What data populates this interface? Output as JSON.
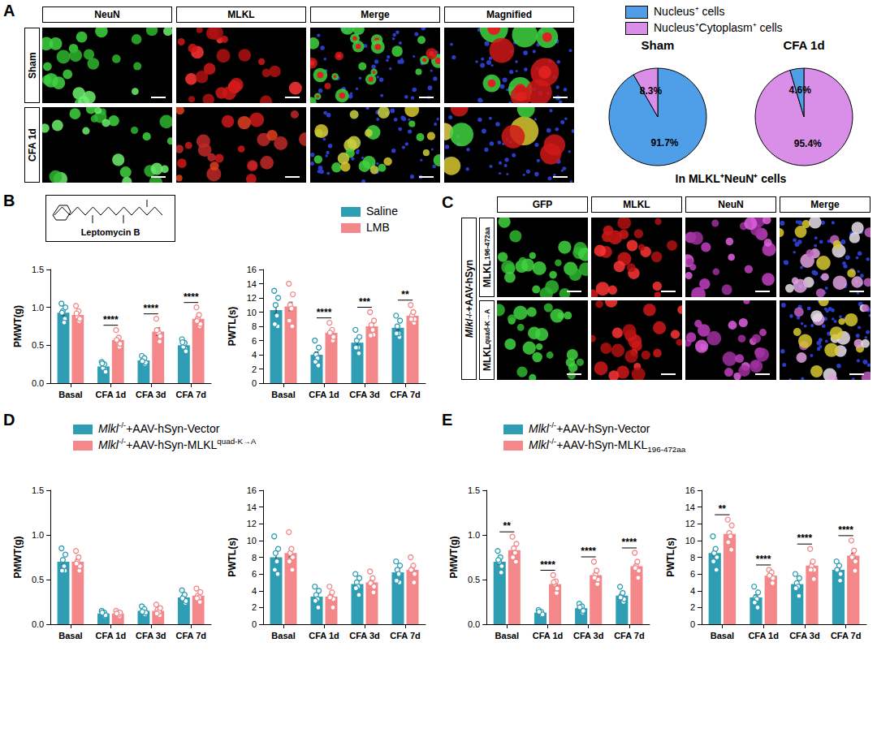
{
  "panel_letters": [
    "A",
    "B",
    "C",
    "D",
    "E"
  ],
  "images": {
    "A": {
      "columns": [
        "NeuN",
        "MLKL",
        "Merge",
        "Magnified"
      ],
      "rows": [
        "Sham",
        "CFA 1d"
      ]
    },
    "C": {
      "columns": [
        "GFP",
        "MLKL",
        "NeuN",
        "Merge"
      ],
      "rows": [
        [
          "MLKL",
          {
            "text": "196-472aa",
            "style": "sub"
          }
        ],
        [
          "MLKL",
          {
            "text": "quad-K→A",
            "style": "sup"
          }
        ]
      ],
      "group_label": [
        {
          "text": "Mlkl",
          "style": "italic"
        },
        {
          "text": "-/-",
          "style": "sup"
        },
        "+AAV-hSyn"
      ]
    }
  },
  "structure_label": "Leptomycin B",
  "pie_note": "In MLKL⁺NeuN⁺ cells",
  "chart_data": [
    {
      "type": "pie",
      "title": "Sham",
      "legend": "top",
      "categories": [
        "Nucleus⁺ cells",
        "Nucleus⁺Cytoplasm⁺ cells"
      ],
      "values": [
        91.7,
        8.3
      ],
      "value_labels": [
        "91.7%",
        "8.3%"
      ],
      "colors": [
        "#4f9fe8",
        "#d98fe8"
      ]
    },
    {
      "type": "pie",
      "title": "CFA 1d",
      "categories": [
        "Nucleus⁺Cytoplasm⁺ cells",
        "Nucleus⁺ cells"
      ],
      "values": [
        95.4,
        4.6
      ],
      "value_labels": [
        "95.4%",
        "4.6%"
      ],
      "colors": [
        "#d98fe8",
        "#4f9fe8"
      ]
    },
    {
      "type": "bar",
      "ylabel": "PMWT(g)",
      "legend": "top",
      "grid": false,
      "categories": [
        "Basal",
        "CFA 1d",
        "CFA 3d",
        "CFA 7d"
      ],
      "ylim": [
        0,
        1.5
      ],
      "yticks": [
        {
          "value": 0,
          "label": "0.0"
        },
        0.5,
        {
          "value": 1,
          "label": "1.0"
        },
        1.5
      ],
      "series": [
        {
          "name": [
            "Saline"
          ],
          "color": "#2f9db3",
          "values": [
            0.93,
            0.22,
            0.3,
            0.5
          ],
          "errors": [
            0.04,
            0.02,
            0.02,
            0.03
          ],
          "points": [
            [
              1.05,
              0.85,
              0.95,
              0.8,
              1.0,
              0.93
            ],
            [
              0.28,
              0.18,
              0.2,
              0.25,
              0.15,
              0.26
            ],
            [
              0.36,
              0.25,
              0.3,
              0.33,
              0.27,
              0.29
            ],
            [
              0.58,
              0.45,
              0.48,
              0.53,
              0.42,
              0.54
            ]
          ]
        },
        {
          "name": [
            "LMB"
          ],
          "color": "#f4878a",
          "values": [
            0.9,
            0.57,
            0.68,
            0.85
          ],
          "errors": [
            0.04,
            0.04,
            0.05,
            0.04
          ],
          "points": [
            [
              1.02,
              0.82,
              0.88,
              0.95,
              0.85,
              0.92
            ],
            [
              0.7,
              0.48,
              0.55,
              0.6,
              0.52,
              0.57
            ],
            [
              0.85,
              0.55,
              0.7,
              0.66,
              0.62,
              0.7
            ],
            [
              1.0,
              0.75,
              0.85,
              0.9,
              0.78,
              0.82
            ]
          ]
        }
      ],
      "significance": [
        null,
        "****",
        "****",
        "****"
      ]
    },
    {
      "type": "bar",
      "ylabel": "PWTL(s)",
      "grid": false,
      "categories": [
        "Basal",
        "CFA 1d",
        "CFA 3d",
        "CFA 7d"
      ],
      "ylim": [
        0,
        16
      ],
      "yticks": [
        0,
        2,
        4,
        6,
        8,
        10,
        12,
        14,
        16
      ],
      "series": [
        {
          "name": [
            "Saline"
          ],
          "color": "#2f9db3",
          "values": [
            10.3,
            4.0,
            5.7,
            7.8
          ],
          "errors": [
            0.5,
            0.4,
            0.35,
            0.35
          ],
          "points": [
            [
              13.0,
              8.0,
              11.0,
              9.5,
              12.0,
              8.3
            ],
            [
              6.0,
              2.5,
              4.0,
              3.5,
              5.0,
              3.0
            ],
            [
              7.5,
              4.2,
              6.0,
              5.0,
              6.5,
              5.0
            ],
            [
              9.5,
              6.5,
              8.0,
              7.0,
              8.8,
              7.0
            ]
          ]
        },
        {
          "name": [
            "LMB"
          ],
          "color": "#f4878a",
          "values": [
            10.8,
            7.1,
            8.0,
            9.5
          ],
          "errors": [
            0.6,
            0.3,
            0.35,
            0.3
          ],
          "points": [
            [
              14.0,
              8.0,
              11.0,
              10.5,
              12.5,
              8.8
            ],
            [
              8.5,
              6.0,
              7.0,
              7.5,
              6.5,
              7.1
            ],
            [
              10.0,
              6.8,
              8.2,
              7.5,
              8.8,
              6.7
            ],
            [
              11.0,
              8.5,
              9.5,
              10.0,
              9.0,
              9.0
            ]
          ]
        }
      ],
      "significance": [
        null,
        "****",
        "***",
        "**"
      ]
    },
    {
      "type": "bar",
      "ylabel": "PMWT(g)",
      "legend": "top",
      "grid": false,
      "categories": [
        "Basal",
        "CFA 1d",
        "CFA 3d",
        "CFA 7d"
      ],
      "ylim": [
        0,
        1.5
      ],
      "yticks": [
        {
          "value": 0,
          "label": "0.0"
        },
        0.5,
        {
          "value": 1,
          "label": "1.0"
        },
        1.5
      ],
      "series": [
        {
          "name": [
            {
              "text": "Mlkl",
              "style": "italic"
            },
            {
              "text": "-/-",
              "style": "sup"
            },
            "+AAV-hSyn-Vector"
          ],
          "color": "#2f9db3",
          "values": [
            0.7,
            0.12,
            0.15,
            0.3
          ],
          "errors": [
            0.03,
            0.01,
            0.01,
            0.02
          ],
          "points": [
            [
              0.85,
              0.6,
              0.72,
              0.65,
              0.78,
              0.6
            ],
            [
              0.15,
              0.09,
              0.12,
              0.13,
              0.1,
              0.13
            ],
            [
              0.2,
              0.11,
              0.15,
              0.17,
              0.13,
              0.14
            ],
            [
              0.38,
              0.24,
              0.3,
              0.33,
              0.26,
              0.29
            ]
          ]
        },
        {
          "name": [
            {
              "text": "Mlkl",
              "style": "italic"
            },
            {
              "text": "-/-",
              "style": "sup"
            },
            "+AAV-hSyn-MLKL",
            {
              "text": "quad-K→A",
              "style": "sup"
            }
          ],
          "color": "#f4878a",
          "values": [
            0.7,
            0.12,
            0.15,
            0.32
          ],
          "errors": [
            0.03,
            0.01,
            0.01,
            0.02
          ],
          "points": [
            [
              0.82,
              0.6,
              0.7,
              0.75,
              0.65,
              0.68
            ],
            [
              0.15,
              0.09,
              0.12,
              0.11,
              0.13,
              0.12
            ],
            [
              0.22,
              0.1,
              0.16,
              0.14,
              0.18,
              0.12
            ],
            [
              0.4,
              0.25,
              0.32,
              0.3,
              0.36,
              0.29
            ]
          ]
        }
      ]
    },
    {
      "type": "bar",
      "ylabel": "PWTL(s)",
      "grid": false,
      "categories": [
        "Basal",
        "CFA 1d",
        "CFA 3d",
        "CFA 7d"
      ],
      "ylim": [
        0,
        16
      ],
      "yticks": [
        0,
        2,
        4,
        6,
        8,
        10,
        12,
        14,
        16
      ],
      "series": [
        {
          "name": [
            {
              "text": "Mlkl",
              "style": "italic"
            },
            {
              "text": "-/-",
              "style": "sup"
            },
            "+AAV-hSyn-Vector"
          ],
          "color": "#2f9db3",
          "values": [
            8.0,
            3.3,
            4.8,
            6.2
          ],
          "errors": [
            0.4,
            0.3,
            0.3,
            0.25
          ],
          "points": [
            [
              10.5,
              6.0,
              8.5,
              7.5,
              9.0,
              6.5
            ],
            [
              4.5,
              2.0,
              3.5,
              3.0,
              4.0,
              2.8
            ],
            [
              6.0,
              3.5,
              5.0,
              4.5,
              5.5,
              4.3
            ],
            [
              7.5,
              5.0,
              6.5,
              6.0,
              7.0,
              5.2
            ]
          ]
        },
        {
          "name": [
            {
              "text": "Mlkl",
              "style": "italic"
            },
            {
              "text": "-/-",
              "style": "sup"
            },
            "+AAV-hSyn-MLKL",
            {
              "text": "quad-K→A",
              "style": "sup"
            }
          ],
          "color": "#f4878a",
          "values": [
            8.5,
            3.3,
            5.0,
            6.5
          ],
          "errors": [
            0.45,
            0.3,
            0.3,
            0.3
          ],
          "points": [
            [
              11.0,
              6.5,
              8.5,
              9.0,
              8.0,
              7.5
            ],
            [
              4.5,
              2.0,
              3.3,
              3.8,
              3.0,
              3.2
            ],
            [
              6.3,
              3.8,
              5.0,
              5.5,
              4.5,
              4.9
            ],
            [
              8.0,
              5.0,
              6.5,
              7.0,
              6.0,
              6.5
            ]
          ]
        }
      ]
    },
    {
      "type": "bar",
      "ylabel": "PMWT(g)",
      "legend": "top",
      "grid": false,
      "categories": [
        "Basal",
        "CFA 1d",
        "CFA 3d",
        "CFA 7d"
      ],
      "ylim": [
        0,
        1.5
      ],
      "yticks": [
        {
          "value": 0,
          "label": "0.0"
        },
        0.5,
        {
          "value": 1,
          "label": "1.0"
        },
        1.5
      ],
      "series": [
        {
          "name": [
            {
              "text": "Mlkl",
              "style": "italic"
            },
            {
              "text": "-/-",
              "style": "sup"
            },
            "+AAV-hSyn-Vector"
          ],
          "color": "#2f9db3",
          "values": [
            0.7,
            0.13,
            0.18,
            0.32
          ],
          "errors": [
            0.03,
            0.01,
            0.01,
            0.02
          ],
          "points": [
            [
              0.82,
              0.58,
              0.7,
              0.75,
              0.65,
              0.72
            ],
            [
              0.16,
              0.1,
              0.13,
              0.14,
              0.11,
              0.14
            ],
            [
              0.23,
              0.13,
              0.18,
              0.2,
              0.15,
              0.19
            ],
            [
              0.42,
              0.25,
              0.32,
              0.35,
              0.28,
              0.3
            ]
          ]
        },
        {
          "name": [
            {
              "text": "Mlkl",
              "style": "italic"
            },
            {
              "text": "-/-",
              "style": "sup"
            },
            "+AAV-hSyn-MLKL",
            {
              "text": "196-472aa",
              "style": "sub"
            }
          ],
          "color": "#f4878a",
          "values": [
            0.83,
            0.45,
            0.55,
            0.65
          ],
          "errors": [
            0.03,
            0.02,
            0.03,
            0.03
          ],
          "points": [
            [
              0.98,
              0.7,
              0.85,
              0.8,
              0.9,
              0.75
            ],
            [
              0.55,
              0.35,
              0.45,
              0.48,
              0.4,
              0.47
            ],
            [
              0.7,
              0.45,
              0.55,
              0.6,
              0.5,
              0.52
            ],
            [
              0.8,
              0.52,
              0.65,
              0.7,
              0.6,
              0.63
            ]
          ]
        }
      ],
      "significance": [
        "**",
        "****",
        "****",
        "****"
      ]
    },
    {
      "type": "bar",
      "ylabel": "PWTL(s)",
      "grid": false,
      "categories": [
        "Basal",
        "CFA 1d",
        "CFA 3d",
        "CFA 7d"
      ],
      "ylim": [
        0,
        16
      ],
      "yticks": [
        0,
        2,
        4,
        6,
        8,
        10,
        12,
        14,
        16
      ],
      "series": [
        {
          "name": [
            {
              "text": "Mlkl",
              "style": "italic"
            },
            {
              "text": "-/-",
              "style": "sup"
            },
            "+AAV-hSyn-Vector"
          ],
          "color": "#2f9db3",
          "values": [
            8.5,
            3.2,
            4.8,
            6.5
          ],
          "errors": [
            0.35,
            0.3,
            0.25,
            0.2
          ],
          "points": [
            [
              10.5,
              6.5,
              8.5,
              9.0,
              8.0,
              7.5
            ],
            [
              4.5,
              2.0,
              3.3,
              3.0,
              3.8,
              2.6
            ],
            [
              6.0,
              3.5,
              5.0,
              4.5,
              5.5,
              4.3
            ],
            [
              7.5,
              5.3,
              6.5,
              7.0,
              6.0,
              6.5
            ]
          ]
        },
        {
          "name": [
            {
              "text": "Mlkl",
              "style": "italic"
            },
            {
              "text": "-/-",
              "style": "sup"
            },
            "+AAV-hSyn-MLKL",
            {
              "text": "196-472aa",
              "style": "sub"
            }
          ],
          "color": "#f4878a",
          "values": [
            10.8,
            5.8,
            7.0,
            8.2
          ],
          "errors": [
            0.3,
            0.15,
            0.3,
            0.3
          ],
          "points": [
            [
              12.5,
              9.0,
              11.0,
              10.5,
              11.8,
              9.8
            ],
            [
              6.5,
              5.0,
              5.8,
              6.2,
              5.5,
              5.8
            ],
            [
              9.0,
              5.5,
              7.0,
              7.5,
              6.5,
              6.5
            ],
            [
              10.0,
              6.5,
              8.2,
              8.8,
              7.5,
              8.0
            ]
          ]
        }
      ],
      "significance": [
        "**",
        "****",
        "****",
        "****"
      ]
    }
  ]
}
